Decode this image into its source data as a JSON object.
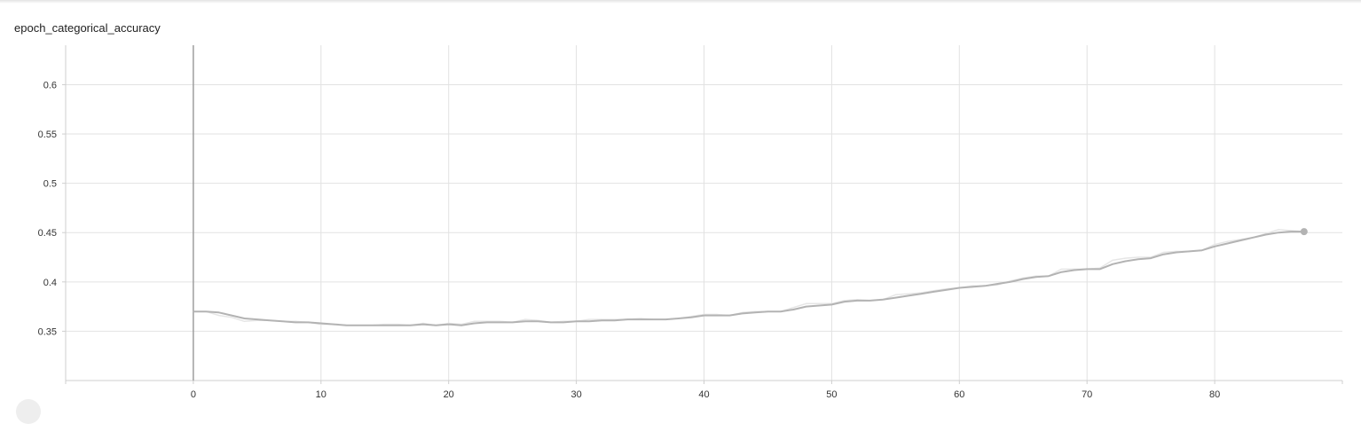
{
  "card": {
    "title": "epoch_categorical_accuracy"
  },
  "chart_data": {
    "type": "line",
    "title": "epoch_categorical_accuracy",
    "xlabel": "",
    "ylabel": "",
    "xlim": [
      -10,
      90
    ],
    "ylim": [
      0.3,
      0.64
    ],
    "xticks": [
      0,
      10,
      20,
      30,
      40,
      50,
      60,
      70,
      80
    ],
    "yticks": [
      0.35,
      0.4,
      0.45,
      0.5,
      0.55,
      0.6
    ],
    "ytick_labels": [
      "0.35",
      "0.4",
      "0.45",
      "0.5",
      "0.55",
      "0.6"
    ],
    "grid": true,
    "series": [
      {
        "role": "raw",
        "color": "#e6e6e6",
        "x": [
          0,
          1,
          2,
          3,
          4,
          5,
          6,
          7,
          8,
          9,
          10,
          11,
          12,
          13,
          14,
          15,
          16,
          17,
          18,
          19,
          20,
          21,
          22,
          23,
          24,
          25,
          26,
          27,
          28,
          29,
          30,
          31,
          32,
          33,
          34,
          35,
          36,
          37,
          38,
          39,
          40,
          41,
          42,
          43,
          44,
          45,
          46,
          47,
          48,
          49,
          50,
          51,
          52,
          53,
          54,
          55,
          56,
          57,
          58,
          59,
          60,
          61,
          62,
          63,
          64,
          65,
          66,
          67,
          68,
          69,
          70,
          71,
          72,
          73,
          74,
          75,
          76,
          77,
          78,
          79,
          80,
          81,
          82,
          83,
          84,
          85,
          86,
          87
        ],
        "y": [
          0.37,
          0.37,
          0.366,
          0.364,
          0.36,
          0.361,
          0.361,
          0.36,
          0.36,
          0.359,
          0.357,
          0.357,
          0.356,
          0.356,
          0.356,
          0.357,
          0.357,
          0.356,
          0.358,
          0.356,
          0.358,
          0.357,
          0.36,
          0.36,
          0.36,
          0.359,
          0.362,
          0.361,
          0.359,
          0.36,
          0.36,
          0.362,
          0.362,
          0.362,
          0.362,
          0.363,
          0.362,
          0.362,
          0.363,
          0.365,
          0.367,
          0.367,
          0.366,
          0.369,
          0.37,
          0.37,
          0.37,
          0.374,
          0.378,
          0.378,
          0.378,
          0.381,
          0.382,
          0.381,
          0.382,
          0.387,
          0.388,
          0.389,
          0.391,
          0.393,
          0.394,
          0.396,
          0.396,
          0.397,
          0.401,
          0.404,
          0.406,
          0.406,
          0.413,
          0.413,
          0.413,
          0.414,
          0.422,
          0.424,
          0.425,
          0.425,
          0.43,
          0.431,
          0.431,
          0.432,
          0.438,
          0.441,
          0.443,
          0.445,
          0.449,
          0.453,
          0.452,
          0.451
        ]
      },
      {
        "role": "smoothed",
        "color": "#b3b3b3",
        "x": [
          0,
          1,
          2,
          3,
          4,
          5,
          6,
          7,
          8,
          9,
          10,
          11,
          12,
          13,
          14,
          15,
          16,
          17,
          18,
          19,
          20,
          21,
          22,
          23,
          24,
          25,
          26,
          27,
          28,
          29,
          30,
          31,
          32,
          33,
          34,
          35,
          36,
          37,
          38,
          39,
          40,
          41,
          42,
          43,
          44,
          45,
          46,
          47,
          48,
          49,
          50,
          51,
          52,
          53,
          54,
          55,
          56,
          57,
          58,
          59,
          60,
          61,
          62,
          63,
          64,
          65,
          66,
          67,
          68,
          69,
          70,
          71,
          72,
          73,
          74,
          75,
          76,
          77,
          78,
          79,
          80,
          81,
          82,
          83,
          84,
          85,
          86,
          87
        ],
        "y": [
          0.37,
          0.37,
          0.369,
          0.366,
          0.363,
          0.362,
          0.361,
          0.36,
          0.359,
          0.359,
          0.358,
          0.357,
          0.356,
          0.356,
          0.356,
          0.356,
          0.356,
          0.356,
          0.357,
          0.356,
          0.357,
          0.356,
          0.358,
          0.359,
          0.359,
          0.359,
          0.36,
          0.36,
          0.359,
          0.359,
          0.36,
          0.36,
          0.361,
          0.361,
          0.362,
          0.362,
          0.362,
          0.362,
          0.363,
          0.364,
          0.366,
          0.366,
          0.366,
          0.368,
          0.369,
          0.37,
          0.37,
          0.372,
          0.375,
          0.376,
          0.377,
          0.38,
          0.381,
          0.381,
          0.382,
          0.384,
          0.386,
          0.388,
          0.39,
          0.392,
          0.394,
          0.395,
          0.396,
          0.398,
          0.4,
          0.403,
          0.405,
          0.406,
          0.41,
          0.412,
          0.413,
          0.413,
          0.418,
          0.421,
          0.423,
          0.424,
          0.428,
          0.43,
          0.431,
          0.432,
          0.436,
          0.439,
          0.442,
          0.445,
          0.448,
          0.45,
          0.451,
          0.451
        ]
      }
    ],
    "cursor_x": 0,
    "cursor_color": "#9e9e9e",
    "end_marker_color": "#b3b3b3"
  }
}
